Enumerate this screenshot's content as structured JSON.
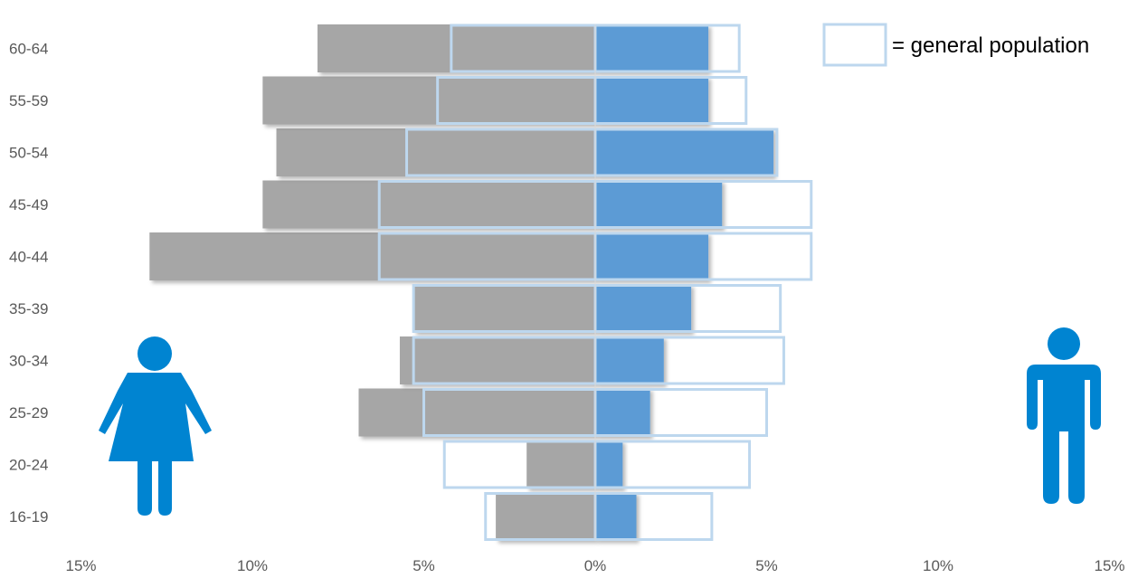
{
  "chart_data": {
    "type": "bar",
    "orientation": "horizontal",
    "title": "",
    "xlabel": "",
    "ylabel": "",
    "categories": [
      "16-19",
      "20-24",
      "25-29",
      "30-34",
      "35-39",
      "40-44",
      "45-49",
      "50-54",
      "55-59",
      "60-64"
    ],
    "series": [
      {
        "side": "left",
        "color": "#a6a6a6",
        "values": [
          2.9,
          2.0,
          6.9,
          5.7,
          5.3,
          13.0,
          9.7,
          9.3,
          9.7,
          8.1
        ]
      },
      {
        "side": "right",
        "color": "#5b9bd5",
        "values": [
          1.2,
          0.8,
          1.6,
          2.0,
          2.8,
          3.3,
          3.7,
          5.2,
          3.3,
          3.3
        ]
      },
      {
        "name": "= general population",
        "role": "reference",
        "side": "left",
        "values": [
          3.2,
          4.4,
          5.0,
          5.3,
          5.3,
          6.3,
          6.3,
          5.5,
          4.6,
          4.2
        ]
      },
      {
        "name": "= general population",
        "role": "reference",
        "side": "right",
        "values": [
          3.4,
          4.5,
          5.0,
          5.5,
          5.4,
          6.3,
          6.3,
          5.3,
          4.4,
          4.2
        ]
      }
    ],
    "xlim": [
      -15,
      15
    ],
    "xticks": [
      {
        "value": -15,
        "label": "15%"
      },
      {
        "value": -10,
        "label": "10%"
      },
      {
        "value": -5,
        "label": "5%"
      },
      {
        "value": 0,
        "label": "0%"
      },
      {
        "value": 5,
        "label": "5%"
      },
      {
        "value": 10,
        "label": "10%"
      },
      {
        "value": 15,
        "label": "15%"
      }
    ],
    "legend": {
      "label": "= general population",
      "placement": "top-right"
    },
    "grid": false,
    "icons": {
      "left": "female-figure-icon",
      "right": "male-figure-icon",
      "color": "#0084d1"
    },
    "outline_color": "#bdd7ee"
  }
}
